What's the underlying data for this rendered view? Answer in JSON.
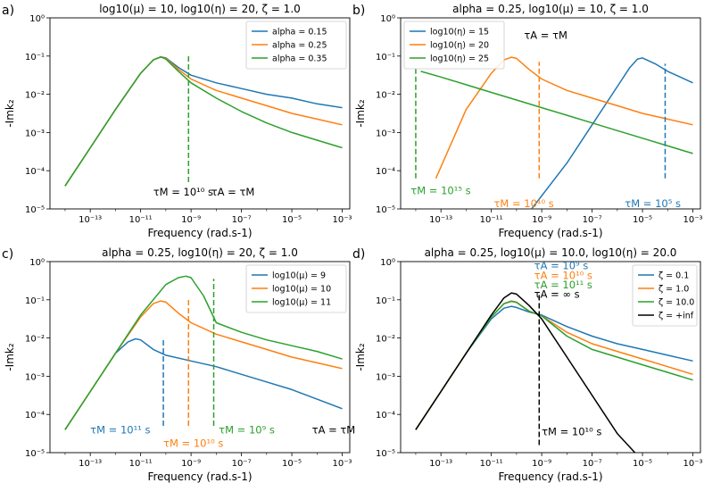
{
  "figure": {
    "background": "#ffffff"
  },
  "chart_data": [
    {
      "id": "a",
      "type": "line",
      "panel_label": "a)",
      "title": "log10(μ) = 10, log10(η) = 20, ζ = 1.0",
      "xlabel": "Frequency (rad.s-1)",
      "ylabel": "-Imk₂",
      "xscale": "log",
      "yscale": "log",
      "xlim": [
        -14.6,
        -2.7
      ],
      "ylim": [
        -5,
        0
      ],
      "xticks": [
        "10⁻¹³",
        "10⁻¹¹",
        "10⁻⁹",
        "10⁻⁷",
        "10⁻⁵",
        "10⁻³"
      ],
      "xtick_exps": [
        -13,
        -11,
        -9,
        -7,
        -5,
        -3
      ],
      "yticks": [
        "10⁻⁵",
        "10⁻⁴",
        "10⁻³",
        "10⁻²",
        "10⁻¹",
        "10⁰"
      ],
      "ytick_exps": [
        -5,
        -4,
        -3,
        -2,
        -1,
        0
      ],
      "legend": {
        "position": "top-right",
        "entries": [
          "alpha = 0.15",
          "alpha = 0.25",
          "alpha = 0.35"
        ]
      },
      "series": [
        {
          "name": "alpha = 0.15",
          "color": "#1f77b4",
          "x": [
            -14,
            -13,
            -12,
            -11,
            -10.5,
            -10.2,
            -10,
            -9.5,
            -9,
            -8,
            -7,
            -6,
            -5,
            -4,
            -3
          ],
          "y": [
            -4.4,
            -3.4,
            -2.4,
            -1.45,
            -1.1,
            -1.02,
            -1.05,
            -1.3,
            -1.5,
            -1.7,
            -1.85,
            -2.0,
            -2.1,
            -2.25,
            -2.35
          ]
        },
        {
          "name": "alpha = 0.25",
          "color": "#ff7f0e",
          "x": [
            -14,
            -13,
            -12,
            -11,
            -10.5,
            -10.2,
            -10,
            -9.5,
            -9,
            -8,
            -7,
            -6,
            -5,
            -4,
            -3
          ],
          "y": [
            -4.4,
            -3.4,
            -2.4,
            -1.45,
            -1.1,
            -1.03,
            -1.06,
            -1.35,
            -1.6,
            -1.9,
            -2.1,
            -2.3,
            -2.5,
            -2.65,
            -2.8
          ]
        },
        {
          "name": "alpha = 0.35",
          "color": "#2ca02c",
          "x": [
            -14,
            -13,
            -12,
            -11,
            -10.5,
            -10.2,
            -10,
            -9.5,
            -9,
            -8,
            -7,
            -6,
            -5,
            -4,
            -3
          ],
          "y": [
            -4.4,
            -3.4,
            -2.4,
            -1.45,
            -1.1,
            -1.02,
            -1.08,
            -1.4,
            -1.7,
            -2.1,
            -2.45,
            -2.75,
            -3.0,
            -3.2,
            -3.4
          ]
        }
      ],
      "vlines": [
        {
          "x": -9.1,
          "y0": -4.3,
          "y1": -1.0,
          "color": "#2ca02c"
        }
      ],
      "annotations": [
        {
          "text": "τM = 10¹⁰ s",
          "color": "#000000",
          "x": -10.5,
          "y": -4.65
        },
        {
          "text": "τA = τM",
          "color": "#000000",
          "x": -8.2,
          "y": -4.65
        }
      ]
    },
    {
      "id": "b",
      "type": "line",
      "panel_label": "b)",
      "title": "alpha = 0.25, log10(μ) = 10, ζ = 1.0",
      "xlabel": "Frequency (rad.s-1)",
      "ylabel": "-Imk₂",
      "xscale": "log",
      "yscale": "log",
      "xlim": [
        -14.6,
        -2.7
      ],
      "ylim": [
        -5,
        0
      ],
      "xticks": [
        "10⁻¹³",
        "10⁻¹¹",
        "10⁻⁹",
        "10⁻⁷",
        "10⁻⁵",
        "10⁻³"
      ],
      "xtick_exps": [
        -13,
        -11,
        -9,
        -7,
        -5,
        -3
      ],
      "yticks": [
        "10⁻⁵",
        "10⁻⁴",
        "10⁻³",
        "10⁻²",
        "10⁻¹",
        "10⁰"
      ],
      "ytick_exps": [
        -5,
        -4,
        -3,
        -2,
        -1,
        0
      ],
      "legend": {
        "position": "top-left",
        "entries": [
          "log10(η) = 15",
          "log10(η) = 20",
          "log10(η) = 25"
        ]
      },
      "series": [
        {
          "name": "log10(η) = 15",
          "color": "#1f77b4",
          "x": [
            -9.4,
            -8,
            -7,
            -6,
            -5.5,
            -5.2,
            -5,
            -4.5,
            -4,
            -3.5,
            -3
          ],
          "y": [
            -5.0,
            -3.8,
            -2.8,
            -1.8,
            -1.3,
            -1.08,
            -1.05,
            -1.2,
            -1.4,
            -1.55,
            -1.7
          ]
        },
        {
          "name": "log10(η) = 20",
          "color": "#ff7f0e",
          "x": [
            -13.2,
            -12,
            -11,
            -10.5,
            -10.2,
            -10,
            -9.5,
            -9,
            -8,
            -7,
            -6,
            -5,
            -4,
            -3
          ],
          "y": [
            -4.2,
            -2.4,
            -1.45,
            -1.1,
            -1.03,
            -1.06,
            -1.35,
            -1.6,
            -1.9,
            -2.1,
            -2.3,
            -2.5,
            -2.65,
            -2.8
          ]
        },
        {
          "name": "log10(η) = 25",
          "color": "#2ca02c",
          "x": [
            -13.8,
            -13,
            -12,
            -11,
            -10,
            -9,
            -8,
            -7,
            -6,
            -5,
            -4,
            -3
          ],
          "y": [
            -1.4,
            -1.55,
            -1.75,
            -1.95,
            -2.15,
            -2.35,
            -2.55,
            -2.75,
            -2.95,
            -3.15,
            -3.35,
            -3.55
          ]
        }
      ],
      "vlines": [
        {
          "x": -4.1,
          "y0": -4.2,
          "y1": -1.2,
          "color": "#1f77b4"
        },
        {
          "x": -9.1,
          "y0": -4.2,
          "y1": -1.15,
          "color": "#ff7f0e"
        },
        {
          "x": -14.0,
          "y0": -4.2,
          "y1": -1.25,
          "color": "#2ca02c"
        }
      ],
      "annotations": [
        {
          "text": "τA = τM",
          "color": "#000000",
          "x": -9.7,
          "y": -0.55
        },
        {
          "text": "τM = 10¹⁵ s",
          "color": "#2ca02c",
          "x": -14.2,
          "y": -4.62
        },
        {
          "text": "τM = 10¹⁰ s",
          "color": "#ff7f0e",
          "x": -10.9,
          "y": -4.95
        },
        {
          "text": "τM = 10⁵ s",
          "color": "#1f77b4",
          "x": -5.7,
          "y": -4.95
        }
      ]
    },
    {
      "id": "c",
      "type": "line",
      "panel_label": "c)",
      "title": "alpha = 0.25, log10(η) = 20, ζ = 1.0",
      "xlabel": "Frequency (rad.s-1)",
      "ylabel": "-Imk₂",
      "xscale": "log",
      "yscale": "log",
      "xlim": [
        -14.6,
        -2.7
      ],
      "ylim": [
        -5,
        0
      ],
      "xticks": [
        "10⁻¹³",
        "10⁻¹¹",
        "10⁻⁹",
        "10⁻⁷",
        "10⁻⁵",
        "10⁻³"
      ],
      "xtick_exps": [
        -13,
        -11,
        -9,
        -7,
        -5,
        -3
      ],
      "yticks": [
        "10⁻⁵",
        "10⁻⁴",
        "10⁻³",
        "10⁻²",
        "10⁻¹",
        "10⁰"
      ],
      "ytick_exps": [
        -5,
        -4,
        -3,
        -2,
        -1,
        0
      ],
      "legend": {
        "position": "top-right",
        "entries": [
          "log10(μ) = 9",
          "log10(μ) = 10",
          "log10(μ) = 11"
        ]
      },
      "series": [
        {
          "name": "log10(μ) = 9",
          "color": "#1f77b4",
          "x": [
            -14,
            -13,
            -12,
            -11.5,
            -11.2,
            -11,
            -10.5,
            -10,
            -9,
            -8,
            -7,
            -6,
            -5,
            -4,
            -3
          ],
          "y": [
            -4.4,
            -3.4,
            -2.4,
            -2.1,
            -2.02,
            -2.05,
            -2.3,
            -2.45,
            -2.6,
            -2.75,
            -2.95,
            -3.15,
            -3.35,
            -3.6,
            -3.85
          ]
        },
        {
          "name": "log10(μ) = 10",
          "color": "#ff7f0e",
          "x": [
            -14,
            -13,
            -12,
            -11,
            -10.5,
            -10.2,
            -10,
            -9.5,
            -9,
            -8,
            -7,
            -6,
            -5,
            -4,
            -3
          ],
          "y": [
            -4.4,
            -3.4,
            -2.4,
            -1.45,
            -1.1,
            -1.03,
            -1.06,
            -1.35,
            -1.6,
            -1.9,
            -2.1,
            -2.3,
            -2.5,
            -2.65,
            -2.8
          ]
        },
        {
          "name": "log10(μ) = 11",
          "color": "#2ca02c",
          "x": [
            -14,
            -13,
            -12,
            -11,
            -10,
            -9.5,
            -9.2,
            -9,
            -8.5,
            -8,
            -7,
            -6,
            -5,
            -4,
            -3
          ],
          "y": [
            -4.4,
            -3.4,
            -2.4,
            -1.4,
            -0.6,
            -0.42,
            -0.38,
            -0.42,
            -0.9,
            -1.6,
            -1.85,
            -2.05,
            -2.2,
            -2.35,
            -2.55
          ]
        }
      ],
      "vlines": [
        {
          "x": -10.1,
          "y0": -4.3,
          "y1": -2.0,
          "color": "#1f77b4"
        },
        {
          "x": -9.1,
          "y0": -4.3,
          "y1": -1.0,
          "color": "#ff7f0e"
        },
        {
          "x": -8.1,
          "y0": -4.3,
          "y1": -0.45,
          "color": "#2ca02c"
        }
      ],
      "annotations": [
        {
          "text": "τM = 10¹¹ s",
          "color": "#1f77b4",
          "x": -13.0,
          "y": -4.5
        },
        {
          "text": "τM = 10¹⁰ s",
          "color": "#ff7f0e",
          "x": -10.1,
          "y": -4.85
        },
        {
          "text": "τM = 10⁹ s",
          "color": "#2ca02c",
          "x": -7.9,
          "y": -4.5
        },
        {
          "text": "τA = τM",
          "color": "#000000",
          "x": -4.2,
          "y": -4.5
        }
      ]
    },
    {
      "id": "d",
      "type": "line",
      "panel_label": "d)",
      "title": "alpha = 0.25, log10(μ) = 10.0, log10(η) = 20.0",
      "xlabel": "Frequency (rad.s-1)",
      "ylabel": "-Imk₂",
      "xscale": "log",
      "yscale": "log",
      "xlim": [
        -14.6,
        -2.7
      ],
      "ylim": [
        -5,
        0
      ],
      "xticks": [
        "10⁻¹³",
        "10⁻¹¹",
        "10⁻⁹",
        "10⁻⁷",
        "10⁻⁵",
        "10⁻³"
      ],
      "xtick_exps": [
        -13,
        -11,
        -9,
        -7,
        -5,
        -3
      ],
      "yticks": [
        "10⁻⁵",
        "10⁻⁴",
        "10⁻³",
        "10⁻²",
        "10⁻¹",
        "10⁰"
      ],
      "ytick_exps": [
        -5,
        -4,
        -3,
        -2,
        -1,
        0
      ],
      "legend": {
        "position": "top-right",
        "entries": [
          "ζ = 0.1",
          "ζ = 1.0",
          "ζ = 10.0",
          "ζ = +inf"
        ]
      },
      "series": [
        {
          "name": "ζ = 0.1",
          "color": "#1f77b4",
          "x": [
            -14,
            -13,
            -12,
            -11,
            -10.5,
            -10.2,
            -10,
            -9.5,
            -9,
            -8,
            -7,
            -6,
            -5,
            -4,
            -3
          ],
          "y": [
            -4.4,
            -3.4,
            -2.4,
            -1.5,
            -1.22,
            -1.17,
            -1.2,
            -1.32,
            -1.4,
            -1.7,
            -1.95,
            -2.15,
            -2.3,
            -2.45,
            -2.6
          ]
        },
        {
          "name": "ζ = 1.0",
          "color": "#ff7f0e",
          "x": [
            -14,
            -13,
            -12,
            -11,
            -10.5,
            -10.2,
            -10,
            -9.5,
            -9,
            -8,
            -7,
            -6,
            -5,
            -4,
            -3
          ],
          "y": [
            -4.4,
            -3.4,
            -2.4,
            -1.45,
            -1.1,
            -1.03,
            -1.06,
            -1.3,
            -1.42,
            -1.85,
            -2.15,
            -2.35,
            -2.55,
            -2.75,
            -2.95
          ]
        },
        {
          "name": "ζ = 10.0",
          "color": "#2ca02c",
          "x": [
            -14,
            -13,
            -12,
            -11,
            -10.5,
            -10.2,
            -10,
            -9.5,
            -9,
            -8,
            -7,
            -6,
            -5,
            -4,
            -3
          ],
          "y": [
            -4.4,
            -3.4,
            -2.4,
            -1.45,
            -1.1,
            -1.04,
            -1.07,
            -1.3,
            -1.42,
            -1.95,
            -2.3,
            -2.5,
            -2.7,
            -2.9,
            -3.1
          ]
        },
        {
          "name": "ζ = +inf",
          "color": "#000000",
          "x": [
            -14,
            -13,
            -12,
            -11,
            -10.5,
            -10.2,
            -10,
            -9.5,
            -9,
            -8,
            -7,
            -6,
            -5.3
          ],
          "y": [
            -4.4,
            -3.4,
            -2.4,
            -1.4,
            -0.95,
            -0.82,
            -0.85,
            -1.15,
            -1.5,
            -2.5,
            -3.5,
            -4.5,
            -5.0
          ]
        }
      ],
      "vlines": [
        {
          "x": -9.1,
          "y0": -4.8,
          "y1": -0.85,
          "color": "#000000"
        }
      ],
      "annotations": [
        {
          "text": "τA = 10⁹ s",
          "color": "#1f77b4",
          "x": -9.3,
          "y": -0.2
        },
        {
          "text": "τA = 10¹⁰ s",
          "color": "#ff7f0e",
          "x": -9.3,
          "y": -0.45
        },
        {
          "text": "τA = 10¹¹ s",
          "color": "#2ca02c",
          "x": -9.3,
          "y": -0.7
        },
        {
          "text": "τA = ∞ s",
          "color": "#000000",
          "x": -9.3,
          "y": -0.95
        },
        {
          "text": "τM = 10¹⁰ s",
          "color": "#000000",
          "x": -9.0,
          "y": -4.55
        }
      ]
    }
  ]
}
